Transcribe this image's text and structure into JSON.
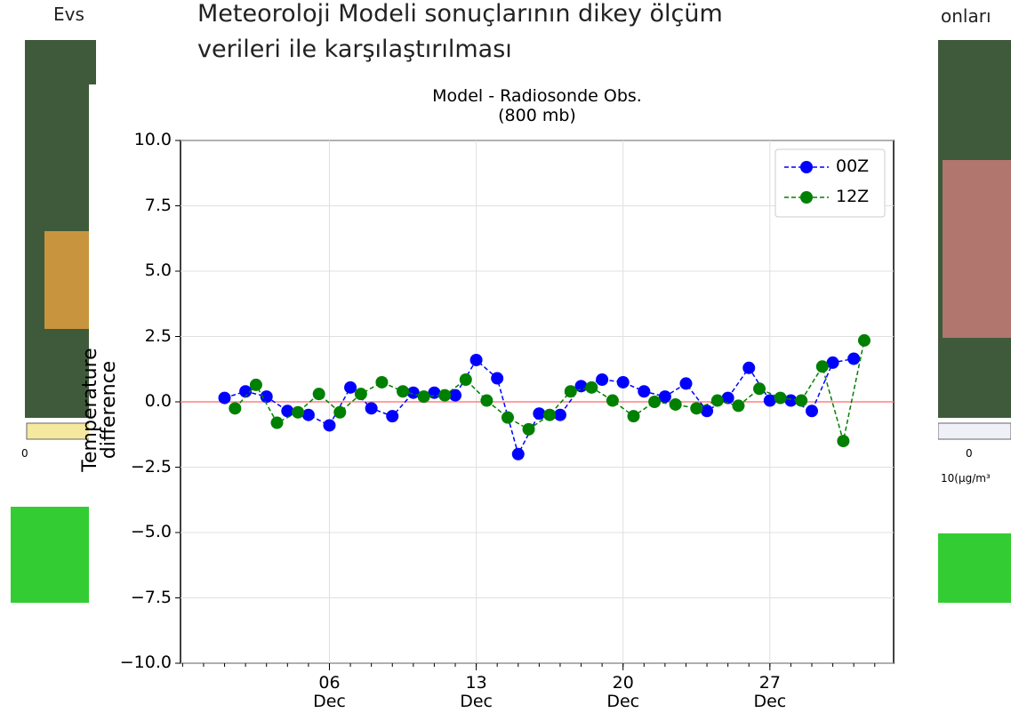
{
  "slide": {
    "title_lines": [
      "Meteoroloji Modeli sonuçlarının dikey ölçüm",
      "verileri ile karşılaştırılması"
    ],
    "left_fragment": "Evs",
    "right_fragment": "onları",
    "left_scale_label": "0",
    "right_scale_label": "0",
    "right_unit_fragment": "10(μg/m³"
  },
  "chart_data": {
    "type": "line",
    "title": "Model - Radiosonde Obs.",
    "subtitle": "(800 mb)",
    "y_label": "Temperature difference",
    "xlim": [
      -1.1,
      32.9
    ],
    "xticks": [
      {
        "value": 6,
        "label": "06\nDec"
      },
      {
        "value": 13,
        "label": "13\nDec"
      },
      {
        "value": 20,
        "label": "20\nDec"
      },
      {
        "value": 27,
        "label": "27\nDec"
      }
    ],
    "ylim": [
      -10,
      10
    ],
    "yticks": [
      {
        "value": 10,
        "label": "10.0"
      },
      {
        "value": 7.5,
        "label": "7.5"
      },
      {
        "value": 5,
        "label": "5.0"
      },
      {
        "value": 2.5,
        "label": "2.5"
      },
      {
        "value": 0,
        "label": "0.0"
      },
      {
        "value": -2.5,
        "label": "−2.5"
      },
      {
        "value": -5,
        "label": "−5.0"
      },
      {
        "value": -7.5,
        "label": "−7.5"
      },
      {
        "value": -10,
        "label": "−10.0"
      }
    ],
    "grid": true,
    "legend": "upper right",
    "reference_line": {
      "value": 0,
      "color": "#ff8080"
    },
    "series": [
      {
        "name": "00Z",
        "color": "#0000ff",
        "x": [
          1,
          2,
          3,
          4,
          5,
          6,
          7,
          8,
          9,
          10,
          11,
          12,
          13,
          14,
          15,
          16,
          17,
          18,
          19,
          20,
          21,
          22,
          23,
          24,
          25,
          26,
          27,
          28,
          29,
          30,
          31
        ],
        "values": [
          0.15,
          0.4,
          0.2,
          -0.35,
          -0.5,
          -0.9,
          0.55,
          -0.25,
          -0.55,
          0.35,
          0.35,
          0.25,
          1.6,
          0.9,
          -2.0,
          -0.45,
          -0.5,
          0.6,
          0.85,
          0.75,
          0.4,
          0.2,
          0.7,
          -0.35,
          0.15,
          1.3,
          0.05,
          0.05,
          -0.35,
          1.5,
          1.65
        ]
      },
      {
        "name": "12Z",
        "color": "#008000",
        "x": [
          1.5,
          2.5,
          3.5,
          4.5,
          5.5,
          6.5,
          7.5,
          8.5,
          9.5,
          10.5,
          11.5,
          12.5,
          13.5,
          14.5,
          15.5,
          16.5,
          17.5,
          18.5,
          19.5,
          20.5,
          21.5,
          22.5,
          23.5,
          24.5,
          25.5,
          26.5,
          27.5,
          28.5,
          29.5,
          30.5,
          31.5
        ],
        "values": [
          -0.25,
          0.65,
          -0.8,
          -0.4,
          0.3,
          -0.4,
          0.3,
          0.75,
          0.4,
          0.2,
          0.25,
          0.85,
          0.05,
          -0.6,
          -1.05,
          -0.5,
          0.4,
          0.55,
          0.05,
          -0.55,
          0.0,
          -0.1,
          -0.25,
          0.05,
          -0.15,
          0.5,
          0.15,
          0.05,
          1.35,
          -1.5,
          2.35
        ]
      }
    ]
  }
}
